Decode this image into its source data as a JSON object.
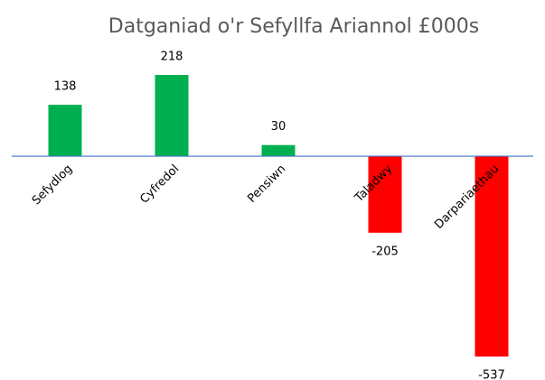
{
  "chart_data": {
    "type": "bar",
    "title": "Datganiad o'r Sefyllfa Ariannol £000s",
    "categories": [
      "Sefydlog",
      "Cyfredol",
      "Pensiwn",
      "Taladwy",
      "Darpariaethau"
    ],
    "values": [
      138,
      218,
      30,
      -205,
      -537
    ],
    "colors": [
      "#00b050",
      "#00b050",
      "#00b050",
      "#ff0000",
      "#ff0000"
    ]
  }
}
